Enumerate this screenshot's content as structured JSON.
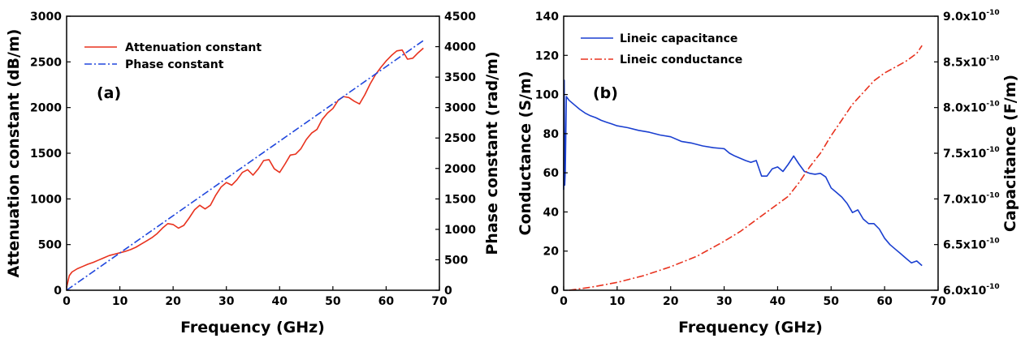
{
  "chart_data": [
    {
      "type": "line",
      "panel_label": "(a)",
      "xlabel": "Frequency (GHz)",
      "ylabel": "Attenuation constant (dB/m)",
      "y2label": "Phase constant (rad/m)",
      "xlim": [
        0,
        70
      ],
      "ylim": [
        0,
        3000
      ],
      "y2lim": [
        0,
        4500
      ],
      "xticks": [
        "0",
        "10",
        "20",
        "30",
        "40",
        "50",
        "60",
        "70"
      ],
      "yticks": [
        "0",
        "500",
        "1000",
        "1500",
        "2000",
        "2500",
        "3000"
      ],
      "y2ticks": [
        "0",
        "500",
        "1000",
        "1500",
        "2000",
        "2500",
        "3000",
        "3500",
        "4000",
        "4500"
      ],
      "legend_position": "top-left",
      "series": [
        {
          "name": "Attenuation constant",
          "axis": "left",
          "color": "#e8321e",
          "style": "solid",
          "x": [
            0,
            0.5,
            1,
            2,
            3,
            4,
            5,
            6,
            7,
            8,
            9,
            10,
            11,
            12,
            13,
            14,
            15,
            16,
            17,
            18,
            19,
            20,
            21,
            22,
            23,
            24,
            25,
            26,
            27,
            28,
            29,
            30,
            31,
            32,
            33,
            34,
            35,
            36,
            37,
            38,
            39,
            40,
            41,
            42,
            43,
            44,
            45,
            46,
            47,
            48,
            49,
            50,
            51,
            52,
            53,
            54,
            55,
            56,
            57,
            58,
            59,
            60,
            61,
            62,
            63,
            64,
            65,
            66,
            67
          ],
          "values": [
            30,
            160,
            200,
            235,
            260,
            285,
            305,
            330,
            355,
            380,
            395,
            410,
            425,
            445,
            470,
            505,
            540,
            575,
            620,
            680,
            730,
            720,
            680,
            710,
            790,
            880,
            930,
            890,
            930,
            1040,
            1130,
            1180,
            1150,
            1210,
            1290,
            1320,
            1260,
            1330,
            1420,
            1430,
            1330,
            1290,
            1380,
            1480,
            1490,
            1550,
            1650,
            1720,
            1760,
            1870,
            1940,
            1990,
            2080,
            2120,
            2110,
            2070,
            2040,
            2140,
            2260,
            2360,
            2440,
            2510,
            2570,
            2620,
            2630,
            2530,
            2540,
            2600,
            2650
          ]
        },
        {
          "name": "Phase constant",
          "axis": "right",
          "color": "#2047dd",
          "style": "dash-dot",
          "x": [
            0,
            67
          ],
          "values": [
            0,
            4100
          ]
        }
      ]
    },
    {
      "type": "line",
      "panel_label": "(b)",
      "xlabel": "Frequency (GHz)",
      "ylabel": "Conductance (S/m)",
      "y2label": "Capacitance (F/m)",
      "xlim": [
        0,
        70
      ],
      "ylim": [
        0,
        140
      ],
      "y2lim": [
        6e-10,
        9e-10
      ],
      "xticks": [
        "0",
        "10",
        "20",
        "30",
        "40",
        "50",
        "60",
        "70"
      ],
      "yticks": [
        "0",
        "20",
        "40",
        "60",
        "80",
        "100",
        "120",
        "140"
      ],
      "y2ticks_mantissa": [
        "6.0x10",
        "6.5x10",
        "7.0x10",
        "7.5x10",
        "8.0x10",
        "8.5x10",
        "9.0x10"
      ],
      "y2ticks_exponent": "-10",
      "legend_position": "top-left",
      "series": [
        {
          "name": "Lineic capacitance",
          "axis": "right",
          "color": "#1a3fd0",
          "style": "solid",
          "x": [
            0,
            0.1,
            0.2,
            0.3,
            0.5,
            1,
            2,
            3,
            4,
            5,
            6,
            7,
            8,
            9,
            10,
            12,
            14,
            16,
            18,
            20,
            22,
            24,
            26,
            28,
            30,
            31,
            32,
            34,
            35,
            36,
            37,
            38,
            39,
            40,
            41,
            42,
            43,
            44,
            45,
            46,
            47,
            48,
            49,
            50,
            51,
            52,
            53,
            54,
            55,
            56,
            57,
            58,
            59,
            60,
            61,
            62,
            63,
            64,
            65,
            66,
            67
          ],
          "values": [
            7.1e-10,
            8.3e-10,
            7.15e-10,
            7.3e-10,
            8.12e-10,
            8.08e-10,
            8.03e-10,
            7.98e-10,
            7.94e-10,
            7.91e-10,
            7.89e-10,
            7.86e-10,
            7.84e-10,
            7.82e-10,
            7.8e-10,
            7.78e-10,
            7.75e-10,
            7.73e-10,
            7.7e-10,
            7.68e-10,
            7.63e-10,
            7.61e-10,
            7.58e-10,
            7.56e-10,
            7.55e-10,
            7.5e-10,
            7.47e-10,
            7.42e-10,
            7.4e-10,
            7.42e-10,
            7.25e-10,
            7.25e-10,
            7.33e-10,
            7.35e-10,
            7.3e-10,
            7.38e-10,
            7.47e-10,
            7.38e-10,
            7.3e-10,
            7.28e-10,
            7.27e-10,
            7.28e-10,
            7.24e-10,
            7.12e-10,
            7.07e-10,
            7.02e-10,
            6.95e-10,
            6.85e-10,
            6.88e-10,
            6.78e-10,
            6.73e-10,
            6.73e-10,
            6.67e-10,
            6.57e-10,
            6.5e-10,
            6.45e-10,
            6.4e-10,
            6.35e-10,
            6.3e-10,
            6.32e-10,
            6.27e-10
          ]
        },
        {
          "name": "Lineic conductance",
          "axis": "left",
          "color": "#e8321e",
          "style": "dash-dot",
          "x": [
            1,
            5,
            10,
            15,
            20,
            25,
            30,
            33,
            36,
            39,
            42,
            44,
            46,
            48,
            50,
            52,
            54,
            56,
            58,
            60,
            62,
            64,
            66,
            67
          ],
          "values": [
            0,
            1.5,
            4,
            7.5,
            12,
            17.5,
            25,
            30,
            36,
            42,
            48,
            55,
            63,
            70,
            79,
            87,
            95,
            101,
            107,
            111,
            114,
            117,
            121,
            125
          ]
        }
      ]
    }
  ]
}
